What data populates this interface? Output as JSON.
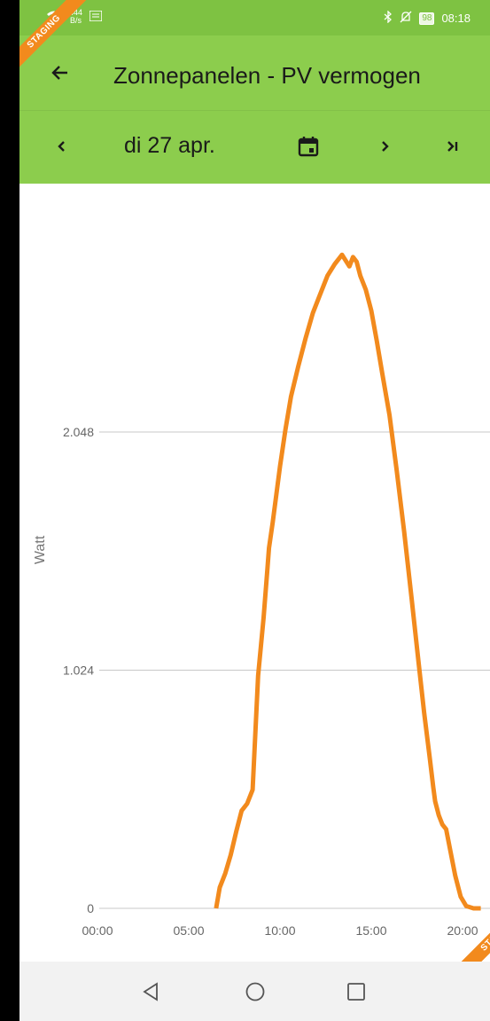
{
  "status_bar": {
    "net_speed_value": "444",
    "net_speed_unit": "B/s",
    "battery": "98",
    "time": "08:18"
  },
  "staging_banner": "STAGING",
  "app_bar": {
    "title": "Zonnepanelen  - PV vermogen"
  },
  "date_bar": {
    "date": "di 27 apr."
  },
  "colors": {
    "status_bar": "#7ec242",
    "app_bar": "#8ccd4d",
    "line": "#f28a1d",
    "ribbon": "#f28a1d",
    "nav_bar": "#f2f2f2"
  },
  "icons": [
    "back-arrow-icon",
    "chevron-left-icon",
    "calendar-icon",
    "chevron-right-icon",
    "skip-to-end-icon",
    "nav-back-icon",
    "nav-home-icon",
    "nav-recents-icon"
  ],
  "chart_data": {
    "type": "line",
    "ylabel": "Watt",
    "xlabel": "",
    "y_ticks": [
      "0",
      "1.024",
      "2.048"
    ],
    "x_ticks": [
      "00:00",
      "05:00",
      "10:00",
      "15:00",
      "20:00"
    ],
    "ylim": [
      0,
      2800
    ],
    "xlim": [
      0,
      24
    ],
    "grid": "horizontal",
    "series": [
      {
        "x": [
          6.5,
          6.7,
          7.0,
          7.3,
          7.6,
          7.9,
          8.2,
          8.5,
          8.8,
          9.1,
          9.3,
          9.4,
          9.6,
          9.8,
          10.0,
          10.3,
          10.6,
          11.0,
          11.4,
          11.8,
          12.2,
          12.6,
          13.0,
          13.4,
          13.8,
          14.0,
          14.2,
          14.4,
          14.7,
          15.0,
          15.3,
          15.6,
          16.0,
          16.4,
          16.8,
          17.2,
          17.6,
          17.9,
          18.2,
          18.4,
          18.5,
          18.7,
          18.9,
          19.1,
          19.3,
          19.6,
          19.9,
          20.2,
          20.6,
          21.0
        ],
        "y": [
          0,
          90,
          150,
          230,
          330,
          420,
          450,
          510,
          1000,
          1250,
          1450,
          1550,
          1660,
          1780,
          1900,
          2060,
          2200,
          2330,
          2450,
          2560,
          2640,
          2720,
          2770,
          2810,
          2760,
          2800,
          2780,
          2720,
          2660,
          2570,
          2440,
          2300,
          2120,
          1880,
          1620,
          1340,
          1050,
          840,
          650,
          520,
          460,
          400,
          360,
          340,
          260,
          140,
          50,
          10,
          0,
          0
        ]
      }
    ]
  }
}
